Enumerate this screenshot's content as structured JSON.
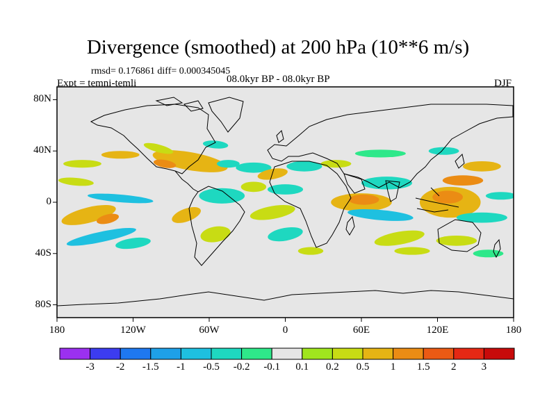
{
  "title": "Divergence (smoothed) at 200 hPa (10**6 m/s)",
  "stats": "rmsd= 0.176861 diff= 0.000345045",
  "experiment": "Expt = temni-temli",
  "period": "08.0kyr BP - 08.0kyr BP",
  "season": "DJF",
  "chart_data": {
    "type": "heatmap",
    "title": "Divergence (smoothed) at 200 hPa (10**6 m/s)",
    "projection": "cylindrical-equidistant",
    "xlim": [
      -180,
      180
    ],
    "ylim": [
      -90,
      90
    ],
    "x_ticks": [
      {
        "value": -180,
        "label": "180"
      },
      {
        "value": -120,
        "label": "120W"
      },
      {
        "value": -60,
        "label": "60W"
      },
      {
        "value": 0,
        "label": "0"
      },
      {
        "value": 60,
        "label": "60E"
      },
      {
        "value": 120,
        "label": "120E"
      },
      {
        "value": 180,
        "label": "180"
      }
    ],
    "y_ticks": [
      {
        "value": 80,
        "label": "80N"
      },
      {
        "value": 40,
        "label": "40N"
      },
      {
        "value": 0,
        "label": "0"
      },
      {
        "value": -40,
        "label": "40S"
      },
      {
        "value": -80,
        "label": "80S"
      }
    ],
    "levels": [
      -3,
      -2,
      -1.5,
      -1,
      -0.5,
      -0.2,
      -0.1,
      0.1,
      0.2,
      0.5,
      1,
      1.5,
      2,
      3
    ],
    "level_labels": [
      "-3",
      "-2",
      "-1.5",
      "-1",
      "-0.5",
      "-0.2",
      "-0.1",
      "0.1",
      "0.2",
      "0.5",
      "1",
      "1.5",
      "2",
      "3"
    ],
    "colors": [
      "#9b30f0",
      "#3c3cf0",
      "#1e78f0",
      "#1ea0e8",
      "#1ec0e0",
      "#1ed8c0",
      "#2ee88a",
      "#e6e6e6",
      "#a0e61e",
      "#c8dc14",
      "#e6b414",
      "#eb8c14",
      "#eb5a14",
      "#e62814",
      "#c80a0a"
    ],
    "background_color": "#e6e6e6",
    "features": [
      {
        "lon": -155,
        "lat": -10,
        "rx": 22,
        "ry": 6,
        "rot": -14,
        "v": 0.7
      },
      {
        "lon": -140,
        "lat": -13,
        "rx": 9,
        "ry": 3.5,
        "rot": -14,
        "v": 1.2
      },
      {
        "lon": -145,
        "lat": -27,
        "rx": 28,
        "ry": 4,
        "rot": -12,
        "v": -0.6
      },
      {
        "lon": -120,
        "lat": -32,
        "rx": 14,
        "ry": 4,
        "rot": -8,
        "v": -0.3
      },
      {
        "lon": -130,
        "lat": 3,
        "rx": 26,
        "ry": 3,
        "rot": 5,
        "v": -0.6
      },
      {
        "lon": -165,
        "lat": 16,
        "rx": 14,
        "ry": 3,
        "rot": 5,
        "v": 0.4
      },
      {
        "lon": -160,
        "lat": 30,
        "rx": 15,
        "ry": 3,
        "rot": 0,
        "v": 0.4
      },
      {
        "lon": -130,
        "lat": 37,
        "rx": 15,
        "ry": 3,
        "rot": 0,
        "v": 0.6
      },
      {
        "lon": -75,
        "lat": 32,
        "rx": 30,
        "ry": 7,
        "rot": 10,
        "v": 0.7
      },
      {
        "lon": -95,
        "lat": 30,
        "rx": 9,
        "ry": 3,
        "rot": 10,
        "v": 1.1
      },
      {
        "lon": -100,
        "lat": 42,
        "rx": 12,
        "ry": 3,
        "rot": 15,
        "v": 0.4
      },
      {
        "lon": -55,
        "lat": 45,
        "rx": 10,
        "ry": 3,
        "rot": 5,
        "v": -0.3
      },
      {
        "lon": -45,
        "lat": 30,
        "rx": 9,
        "ry": 3,
        "rot": 0,
        "v": -0.3
      },
      {
        "lon": -25,
        "lat": 27,
        "rx": 14,
        "ry": 4,
        "rot": 0,
        "v": -0.5
      },
      {
        "lon": -10,
        "lat": 22,
        "rx": 12,
        "ry": 4,
        "rot": -10,
        "v": 0.6
      },
      {
        "lon": 15,
        "lat": 28,
        "rx": 14,
        "ry": 4,
        "rot": 0,
        "v": -0.3
      },
      {
        "lon": 40,
        "lat": 30,
        "rx": 12,
        "ry": 3,
        "rot": 0,
        "v": 0.4
      },
      {
        "lon": -50,
        "lat": 5,
        "rx": 18,
        "ry": 6,
        "rot": 0,
        "v": -0.4
      },
      {
        "lon": -25,
        "lat": 12,
        "rx": 10,
        "ry": 4,
        "rot": 0,
        "v": 0.2
      },
      {
        "lon": 0,
        "lat": 10,
        "rx": 14,
        "ry": 4,
        "rot": 0,
        "v": -0.3
      },
      {
        "lon": -78,
        "lat": -10,
        "rx": 12,
        "ry": 5,
        "rot": -20,
        "v": 0.5
      },
      {
        "lon": -55,
        "lat": -25,
        "rx": 12,
        "ry": 6,
        "rot": -10,
        "v": 0.4
      },
      {
        "lon": -10,
        "lat": -8,
        "rx": 18,
        "ry": 5,
        "rot": -10,
        "v": 0.3
      },
      {
        "lon": 0,
        "lat": -25,
        "rx": 14,
        "ry": 5,
        "rot": -10,
        "v": -0.3
      },
      {
        "lon": 20,
        "lat": -38,
        "rx": 10,
        "ry": 3,
        "rot": 0,
        "v": 0.3
      },
      {
        "lon": 60,
        "lat": 0,
        "rx": 24,
        "ry": 7,
        "rot": 0,
        "v": 0.9
      },
      {
        "lon": 62,
        "lat": 2,
        "rx": 12,
        "ry": 4,
        "rot": 0,
        "v": 1.2
      },
      {
        "lon": 75,
        "lat": -10,
        "rx": 26,
        "ry": 4,
        "rot": 5,
        "v": -0.7
      },
      {
        "lon": 80,
        "lat": 15,
        "rx": 20,
        "ry": 5,
        "rot": 0,
        "v": -0.4
      },
      {
        "lon": 75,
        "lat": 38,
        "rx": 20,
        "ry": 3,
        "rot": 0,
        "v": -0.2
      },
      {
        "lon": 90,
        "lat": -28,
        "rx": 20,
        "ry": 5,
        "rot": -10,
        "v": 0.4
      },
      {
        "lon": 100,
        "lat": -38,
        "rx": 14,
        "ry": 3,
        "rot": 0,
        "v": 0.3
      },
      {
        "lon": 130,
        "lat": 0,
        "rx": 24,
        "ry": 12,
        "rot": 0,
        "v": 0.7
      },
      {
        "lon": 128,
        "lat": 4,
        "rx": 12,
        "ry": 5,
        "rot": 0,
        "v": 1.2
      },
      {
        "lon": 140,
        "lat": 17,
        "rx": 16,
        "ry": 4,
        "rot": 0,
        "v": 1.0
      },
      {
        "lon": 155,
        "lat": 28,
        "rx": 15,
        "ry": 4,
        "rot": 0,
        "v": 0.5
      },
      {
        "lon": 155,
        "lat": -12,
        "rx": 20,
        "ry": 4,
        "rot": 0,
        "v": -0.4
      },
      {
        "lon": 135,
        "lat": -30,
        "rx": 16,
        "ry": 4,
        "rot": 0,
        "v": 0.4
      },
      {
        "lon": 160,
        "lat": -40,
        "rx": 12,
        "ry": 3,
        "rot": 0,
        "v": -0.2
      },
      {
        "lon": 125,
        "lat": 40,
        "rx": 12,
        "ry": 3,
        "rot": 0,
        "v": -0.3
      },
      {
        "lon": 170,
        "lat": 5,
        "rx": 12,
        "ry": 3,
        "rot": 0,
        "v": -0.3
      }
    ]
  }
}
